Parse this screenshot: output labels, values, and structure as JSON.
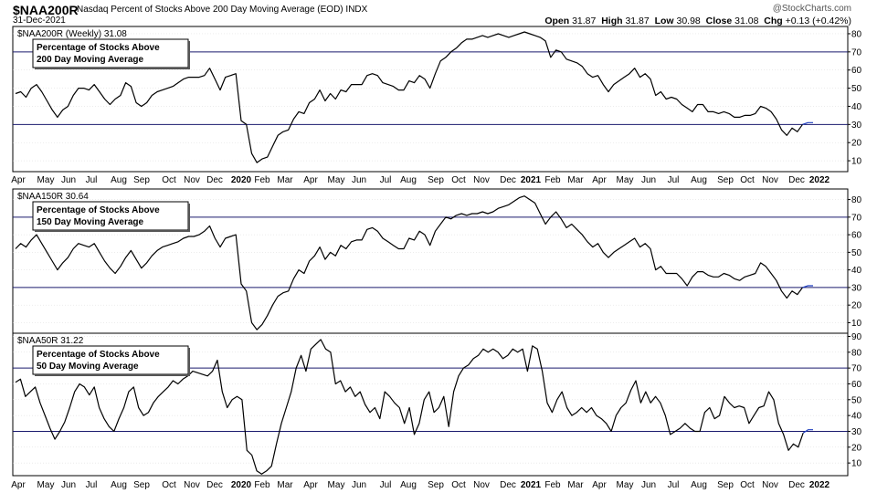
{
  "header": {
    "ticker": "$NAA200R",
    "description": "Nasdaq Percent of Stocks Above 200 Day Moving Average (EOD)",
    "exchange": "INDX",
    "date": "31-Dec-2021",
    "watermark": "@StockCharts.com",
    "open_label": "Open",
    "open": "31.87",
    "high_label": "High",
    "high": "31.87",
    "low_label": "Low",
    "low": "30.98",
    "close_label": "Close",
    "close": "31.08",
    "chg_label": "Chg",
    "chg": "+0.13 (+0.42%)"
  },
  "colors": {
    "line": "#000000",
    "ref_line": "#1a1a6e",
    "grid": "#d9d9d9",
    "recent": "#1f3fbf"
  },
  "x_axis_labels": [
    "Apr",
    "May",
    "Jun",
    "Jul",
    "Aug",
    "Sep",
    "Oct",
    "Nov",
    "Dec",
    "2020",
    "Feb",
    "Mar",
    "Apr",
    "May",
    "Jun",
    "Jul",
    "Aug",
    "Sep",
    "Oct",
    "Nov",
    "Dec",
    "2021",
    "Feb",
    "Mar",
    "Apr",
    "May",
    "Jun",
    "Jul",
    "Aug",
    "Sep",
    "Oct",
    "Nov",
    "Dec",
    "2022"
  ],
  "y_ticks": [
    "10",
    "20",
    "30",
    "40",
    "50",
    "60",
    "70",
    "80"
  ],
  "y_ticks_50": [
    "10",
    "20",
    "30",
    "40",
    "50",
    "60",
    "70",
    "80",
    "90"
  ],
  "chart_data": [
    {
      "type": "line",
      "panel_title": "$NAA200R (Weekly) 31.08",
      "box_line1": "Percentage of Stocks Above",
      "box_line2": "200 Day Moving Average",
      "ylim": [
        4,
        84
      ],
      "reference_lines": [
        30,
        70
      ],
      "values": [
        47,
        48,
        45,
        50,
        52,
        48,
        43,
        38,
        34,
        38,
        40,
        46,
        50,
        50,
        49,
        52,
        48,
        44,
        41,
        44,
        46,
        53,
        51,
        42,
        40,
        42,
        46,
        48,
        49,
        50,
        51,
        53,
        55,
        56,
        56,
        56,
        57,
        61,
        55,
        49,
        56,
        57,
        58,
        32,
        30,
        14,
        9,
        11,
        12,
        18,
        24,
        26,
        27,
        33,
        37,
        36,
        42,
        44,
        49,
        43,
        47,
        44,
        49,
        48,
        52,
        52,
        52,
        57,
        58,
        57,
        53,
        52,
        51,
        49,
        49,
        54,
        53,
        57,
        55,
        50,
        58,
        65,
        67,
        70,
        72,
        75,
        77,
        77,
        78,
        79,
        78,
        79,
        80,
        79,
        78,
        79,
        80,
        81,
        80,
        79,
        78,
        76,
        67,
        71,
        70,
        66,
        65,
        64,
        62,
        58,
        56,
        57,
        52,
        48,
        52,
        54,
        56,
        58,
        61,
        56,
        58,
        55,
        46,
        48,
        44,
        45,
        44,
        41,
        39,
        37,
        41,
        41,
        37,
        37,
        36,
        37,
        36,
        34,
        34,
        35,
        35,
        36,
        40,
        39,
        37,
        33,
        27,
        24,
        28,
        26,
        30,
        31,
        31
      ]
    },
    {
      "type": "line",
      "panel_title": "$NAA150R 30.64",
      "box_line1": "Percentage of Stocks Above",
      "box_line2": "150 Day Moving Average",
      "ylim": [
        4,
        86
      ],
      "reference_lines": [
        30,
        70
      ],
      "values": [
        52,
        55,
        53,
        57,
        60,
        55,
        50,
        45,
        40,
        44,
        47,
        52,
        55,
        54,
        53,
        55,
        50,
        45,
        41,
        38,
        42,
        47,
        51,
        46,
        41,
        44,
        48,
        51,
        53,
        54,
        55,
        56,
        58,
        59,
        59,
        60,
        62,
        65,
        58,
        53,
        58,
        59,
        60,
        32,
        28,
        10,
        6,
        9,
        14,
        20,
        25,
        27,
        28,
        35,
        40,
        38,
        45,
        48,
        53,
        46,
        50,
        48,
        54,
        52,
        56,
        57,
        57,
        63,
        64,
        62,
        58,
        56,
        54,
        52,
        52,
        58,
        57,
        62,
        60,
        54,
        62,
        66,
        70,
        69,
        71,
        72,
        71,
        72,
        72,
        73,
        72,
        73,
        75,
        76,
        77,
        79,
        81,
        82,
        80,
        78,
        72,
        66,
        70,
        73,
        69,
        64,
        66,
        63,
        60,
        56,
        53,
        55,
        50,
        47,
        50,
        52,
        54,
        56,
        58,
        53,
        55,
        52,
        40,
        42,
        38,
        38,
        38,
        35,
        31,
        36,
        39,
        39,
        37,
        36,
        36,
        38,
        37,
        35,
        34,
        36,
        37,
        38,
        44,
        42,
        38,
        34,
        28,
        24,
        28,
        26,
        30,
        31,
        31
      ]
    },
    {
      "type": "line",
      "panel_title": "$NAA50R 31.22",
      "box_line1": "Percentage of Stocks Above",
      "box_line2": "50 Day Moving Average",
      "ylim": [
        2,
        92
      ],
      "reference_lines": [
        30,
        70
      ],
      "values": [
        61,
        63,
        52,
        55,
        58,
        48,
        40,
        32,
        25,
        30,
        36,
        45,
        55,
        60,
        58,
        53,
        58,
        45,
        38,
        33,
        30,
        38,
        45,
        55,
        58,
        45,
        40,
        42,
        48,
        52,
        55,
        58,
        62,
        60,
        63,
        65,
        68,
        67,
        66,
        65,
        68,
        75,
        55,
        45,
        50,
        52,
        50,
        18,
        15,
        5,
        3,
        5,
        8,
        22,
        35,
        45,
        55,
        70,
        78,
        68,
        82,
        85,
        88,
        82,
        80,
        60,
        62,
        55,
        58,
        52,
        55,
        47,
        42,
        45,
        38,
        55,
        52,
        48,
        45,
        35,
        45,
        28,
        35,
        50,
        55,
        42,
        45,
        52,
        33,
        55,
        65,
        70,
        72,
        76,
        78,
        82,
        80,
        82,
        80,
        76,
        78,
        82,
        80,
        82,
        68,
        84,
        82,
        68,
        48,
        42,
        50,
        55,
        45,
        40,
        42,
        45,
        42,
        45,
        40,
        38,
        35,
        30,
        40,
        45,
        48,
        56,
        62,
        48,
        55,
        48,
        52,
        48,
        40,
        28,
        30,
        32,
        35,
        32,
        30,
        30,
        42,
        45,
        38,
        40,
        52,
        48,
        45,
        46,
        45,
        35,
        40,
        45,
        46,
        55,
        50,
        35,
        28,
        18,
        22,
        20,
        29,
        31,
        31
      ]
    }
  ]
}
